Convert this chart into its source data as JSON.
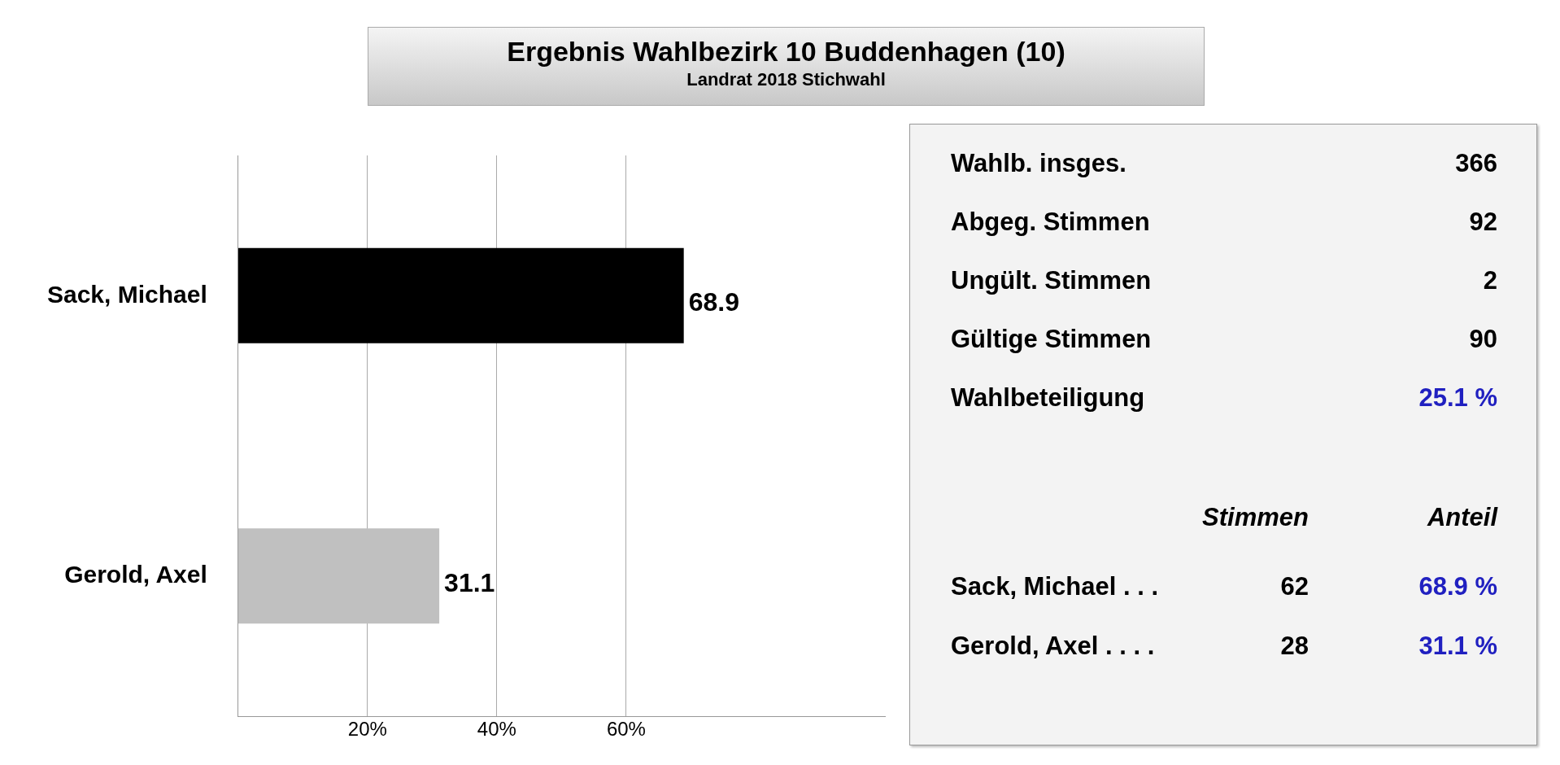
{
  "chart_data": [
    {
      "type": "bar",
      "orientation": "horizontal",
      "title": "Ergebnis Wahlbezirk 10 Buddenhagen (10)",
      "subtitle": "Landrat 2018 Stichwahl",
      "categories": [
        "Sack, Michael",
        "Gerold, Axel"
      ],
      "values": [
        68.9,
        31.1
      ],
      "colors": [
        "#000000",
        "#c0c0c0"
      ],
      "xlim": [
        0,
        100
      ],
      "xticks": [
        {
          "value": 20,
          "label": "20%"
        },
        {
          "value": 40,
          "label": "40%"
        },
        {
          "value": 60,
          "label": "60%"
        }
      ],
      "grid": "x",
      "data_labels": true,
      "legend": false
    },
    {
      "type": "other",
      "annotations": [
        "Wahlb. insges.",
        "366",
        "Abgeg. Stimmen",
        "92",
        "Ungült. Stimmen",
        "2",
        "Gültige Stimmen",
        "90",
        "Wahlbeteiligung",
        "25.1 %",
        "Stimmen",
        "Anteil",
        "Sack, Michael . . .",
        "62",
        "68.9 %",
        "Gerold, Axel . . . .",
        "28",
        "31.1 %"
      ]
    }
  ]
}
